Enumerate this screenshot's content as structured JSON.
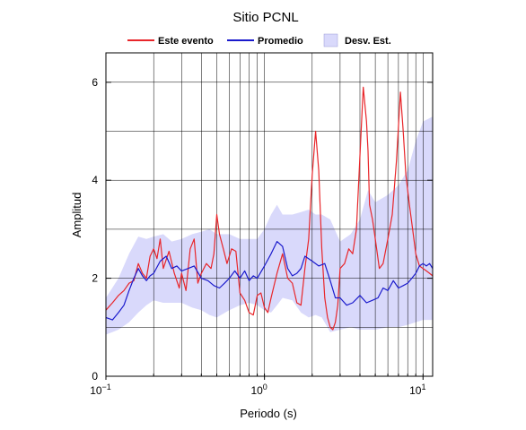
{
  "chart_data": {
    "type": "line",
    "title": "Sitio PCNL",
    "xlabel": "Periodo (s)",
    "ylabel": "Amplitud",
    "x_scale": "log",
    "xlim": [
      0.1,
      11.5
    ],
    "ylim": [
      0,
      6.6
    ],
    "grid": true,
    "legend_placement": "top",
    "xticks": [
      {
        "value": 0.1,
        "base": "10",
        "exp": "−1"
      },
      {
        "value": 1,
        "base": "10",
        "exp": "0"
      },
      {
        "value": 10,
        "base": "10",
        "exp": "1"
      }
    ],
    "yticks": [
      0,
      2,
      4,
      6
    ],
    "legend": [
      {
        "label": "Este evento",
        "kind": "line",
        "color": "#e8262a"
      },
      {
        "label": "Promedio",
        "kind": "line",
        "color": "#1a1acc"
      },
      {
        "label": "Desv. Est.",
        "kind": "band",
        "color": "#d9d9fb"
      }
    ],
    "band": {
      "name": "Desv. Est.",
      "color": "#d9d9fb",
      "x": [
        0.1,
        0.12,
        0.14,
        0.16,
        0.18,
        0.2,
        0.23,
        0.26,
        0.3,
        0.35,
        0.4,
        0.45,
        0.5,
        0.6,
        0.7,
        0.8,
        0.9,
        1.0,
        1.1,
        1.2,
        1.3,
        1.5,
        1.7,
        1.9,
        2.1,
        2.3,
        2.6,
        3.0,
        3.5,
        4.0,
        4.5,
        5.0,
        6.0,
        7.0,
        8.0,
        9.0,
        10.0,
        11.5
      ],
      "lower": [
        0.85,
        0.95,
        1.1,
        1.3,
        1.45,
        1.55,
        1.5,
        1.5,
        1.5,
        1.4,
        1.35,
        1.25,
        1.2,
        1.35,
        1.45,
        1.5,
        1.45,
        1.35,
        1.3,
        1.45,
        1.6,
        1.55,
        1.3,
        1.2,
        1.25,
        1.2,
        0.9,
        0.95,
        1.0,
        0.95,
        0.95,
        0.95,
        1.0,
        1.0,
        1.05,
        1.1,
        1.15,
        1.15
      ],
      "upper": [
        1.6,
        2.0,
        2.5,
        2.85,
        2.8,
        2.85,
        2.9,
        2.75,
        2.8,
        2.9,
        2.95,
        3.0,
        2.9,
        2.9,
        2.8,
        2.8,
        2.8,
        3.0,
        3.3,
        3.5,
        3.3,
        3.3,
        3.35,
        3.4,
        3.3,
        3.3,
        3.2,
        2.75,
        2.9,
        3.2,
        3.8,
        3.55,
        3.7,
        3.9,
        4.2,
        4.8,
        5.2,
        5.3
      ]
    },
    "series": [
      {
        "name": "Este evento",
        "color": "#e8262a",
        "x": [
          0.1,
          0.11,
          0.12,
          0.13,
          0.14,
          0.15,
          0.16,
          0.17,
          0.18,
          0.19,
          0.2,
          0.21,
          0.22,
          0.23,
          0.25,
          0.27,
          0.29,
          0.3,
          0.32,
          0.34,
          0.36,
          0.38,
          0.4,
          0.43,
          0.46,
          0.48,
          0.5,
          0.52,
          0.55,
          0.58,
          0.62,
          0.66,
          0.7,
          0.75,
          0.8,
          0.85,
          0.9,
          0.95,
          1.0,
          1.05,
          1.1,
          1.2,
          1.3,
          1.4,
          1.5,
          1.6,
          1.7,
          1.8,
          1.9,
          2.0,
          2.1,
          2.2,
          2.3,
          2.4,
          2.5,
          2.6,
          2.7,
          2.8,
          2.9,
          3.0,
          3.2,
          3.4,
          3.6,
          3.8,
          4.0,
          4.2,
          4.4,
          4.5,
          4.6,
          4.8,
          5.0,
          5.3,
          5.6,
          6.0,
          6.4,
          6.8,
          7.2,
          7.5,
          7.8,
          8.2,
          8.6,
          9.0,
          9.5,
          10.0,
          10.5,
          11.0,
          11.5
        ],
        "y": [
          1.35,
          1.5,
          1.65,
          1.75,
          1.9,
          1.95,
          2.3,
          2.1,
          2.0,
          2.45,
          2.6,
          2.4,
          2.8,
          2.2,
          2.55,
          2.1,
          1.8,
          2.1,
          1.75,
          2.6,
          2.8,
          1.9,
          2.1,
          2.3,
          2.2,
          2.5,
          3.3,
          2.9,
          2.6,
          2.3,
          2.6,
          2.55,
          1.7,
          1.55,
          1.3,
          1.25,
          1.65,
          1.7,
          1.4,
          1.3,
          1.6,
          2.1,
          2.5,
          2.0,
          1.9,
          1.5,
          1.45,
          2.2,
          2.8,
          4.1,
          5.0,
          4.2,
          2.6,
          1.6,
          1.2,
          1.0,
          0.95,
          1.1,
          1.45,
          2.2,
          2.3,
          2.6,
          2.5,
          3.0,
          4.5,
          5.9,
          5.2,
          4.6,
          3.5,
          3.2,
          2.8,
          2.2,
          2.3,
          2.8,
          3.3,
          4.4,
          5.8,
          5.0,
          4.1,
          3.5,
          3.0,
          2.5,
          2.25,
          2.2,
          2.15,
          2.1,
          2.05
        ]
      },
      {
        "name": "Promedio",
        "color": "#1a1acc",
        "x": [
          0.1,
          0.11,
          0.12,
          0.13,
          0.14,
          0.15,
          0.16,
          0.17,
          0.18,
          0.19,
          0.2,
          0.22,
          0.24,
          0.26,
          0.28,
          0.3,
          0.33,
          0.36,
          0.4,
          0.44,
          0.48,
          0.52,
          0.56,
          0.6,
          0.65,
          0.7,
          0.75,
          0.8,
          0.85,
          0.9,
          1.0,
          1.1,
          1.2,
          1.3,
          1.4,
          1.5,
          1.6,
          1.7,
          1.8,
          2.0,
          2.2,
          2.4,
          2.6,
          2.8,
          3.0,
          3.3,
          3.6,
          4.0,
          4.4,
          4.8,
          5.2,
          5.6,
          6.0,
          6.5,
          7.0,
          7.5,
          8.0,
          8.5,
          9.0,
          9.5,
          10.0,
          10.5,
          11.0,
          11.5
        ],
        "y": [
          1.2,
          1.15,
          1.3,
          1.45,
          1.75,
          2.0,
          2.2,
          2.05,
          1.95,
          2.05,
          2.1,
          2.35,
          2.45,
          2.2,
          2.25,
          2.15,
          2.2,
          2.25,
          2.0,
          1.95,
          1.85,
          1.8,
          1.9,
          2.0,
          2.15,
          2.0,
          2.15,
          1.95,
          2.05,
          2.0,
          2.25,
          2.5,
          2.75,
          2.65,
          2.2,
          2.05,
          2.1,
          2.2,
          2.45,
          2.35,
          2.25,
          2.3,
          1.95,
          1.6,
          1.6,
          1.45,
          1.5,
          1.65,
          1.5,
          1.55,
          1.6,
          1.8,
          1.75,
          1.95,
          1.8,
          1.85,
          1.9,
          2.0,
          2.1,
          2.25,
          2.3,
          2.25,
          2.3,
          2.2
        ]
      }
    ]
  }
}
